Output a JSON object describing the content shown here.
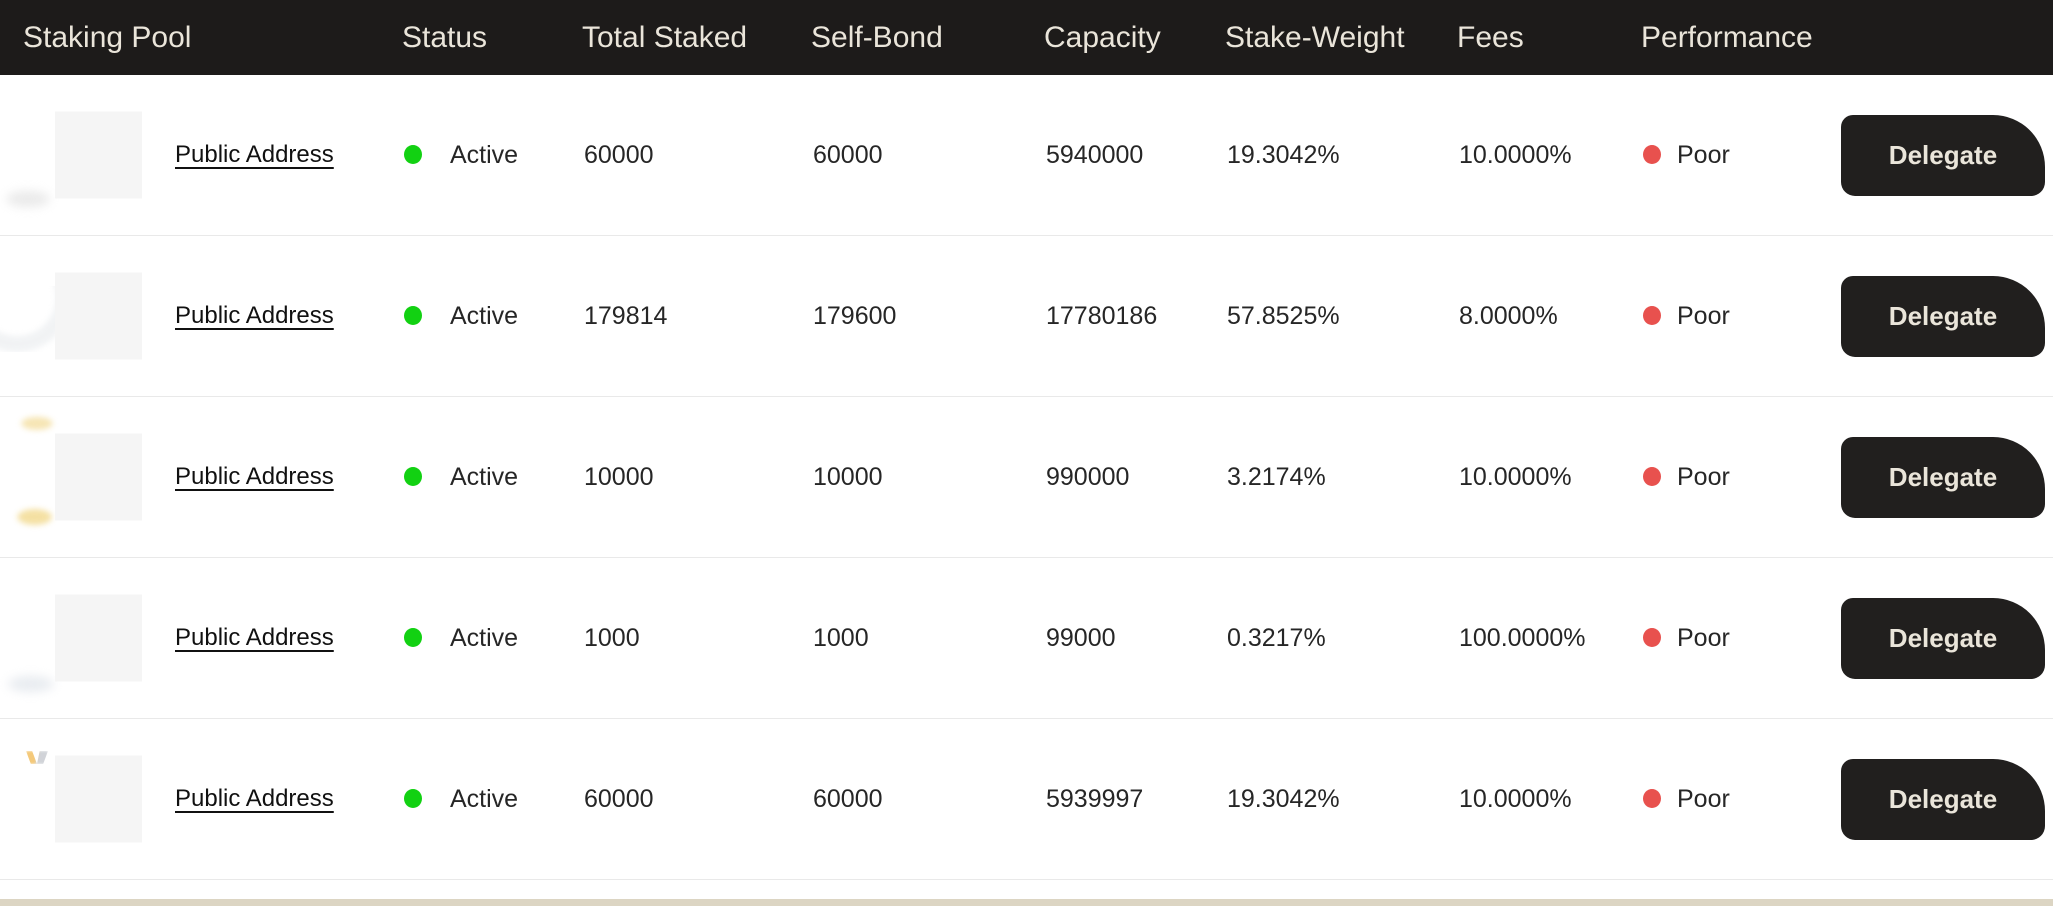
{
  "table": {
    "columns": [
      "Staking Pool",
      "Status",
      "Total Staked",
      "Self-Bond",
      "Capacity",
      "Stake-Weight",
      "Fees",
      "Performance"
    ],
    "rows": [
      {
        "pool_label": "Public Address",
        "status": "Active",
        "total_staked": "60000",
        "self_bond": "60000",
        "capacity": "5940000",
        "stake_weight": "19.3042%",
        "fees": "10.0000%",
        "performance": "Poor",
        "delegate_label": "Delegate"
      },
      {
        "pool_label": "Public Address",
        "status": "Active",
        "total_staked": "179814",
        "self_bond": "179600",
        "capacity": "17780186",
        "stake_weight": "57.8525%",
        "fees": "8.0000%",
        "performance": "Poor",
        "delegate_label": "Delegate"
      },
      {
        "pool_label": "Public Address",
        "status": "Active",
        "total_staked": "10000",
        "self_bond": "10000",
        "capacity": "990000",
        "stake_weight": "3.2174%",
        "fees": "10.0000%",
        "performance": "Poor",
        "delegate_label": "Delegate"
      },
      {
        "pool_label": "Public Address",
        "status": "Active",
        "total_staked": "1000",
        "self_bond": "1000",
        "capacity": "99000",
        "stake_weight": "0.3217%",
        "fees": "100.0000%",
        "performance": "Poor",
        "delegate_label": "Delegate"
      },
      {
        "pool_label": "Public Address",
        "status": "Active",
        "total_staked": "60000",
        "self_bond": "60000",
        "capacity": "5939997",
        "stake_weight": "19.3042%",
        "fees": "10.0000%",
        "performance": "Poor",
        "delegate_label": "Delegate"
      }
    ]
  },
  "colors": {
    "header_bg": "#1d1b1a",
    "header_text": "#eae5da",
    "row_bg": "#ffffff",
    "separator": "#e9e9e9",
    "text": "#262626",
    "link": "#111111",
    "avatar_bg": "#f5f5f5",
    "active_green": "#12d112",
    "poor_red": "#e8514e",
    "button_bg": "#211f1e",
    "button_text": "#eae5da",
    "footer_beige": "#dcd5c3"
  }
}
